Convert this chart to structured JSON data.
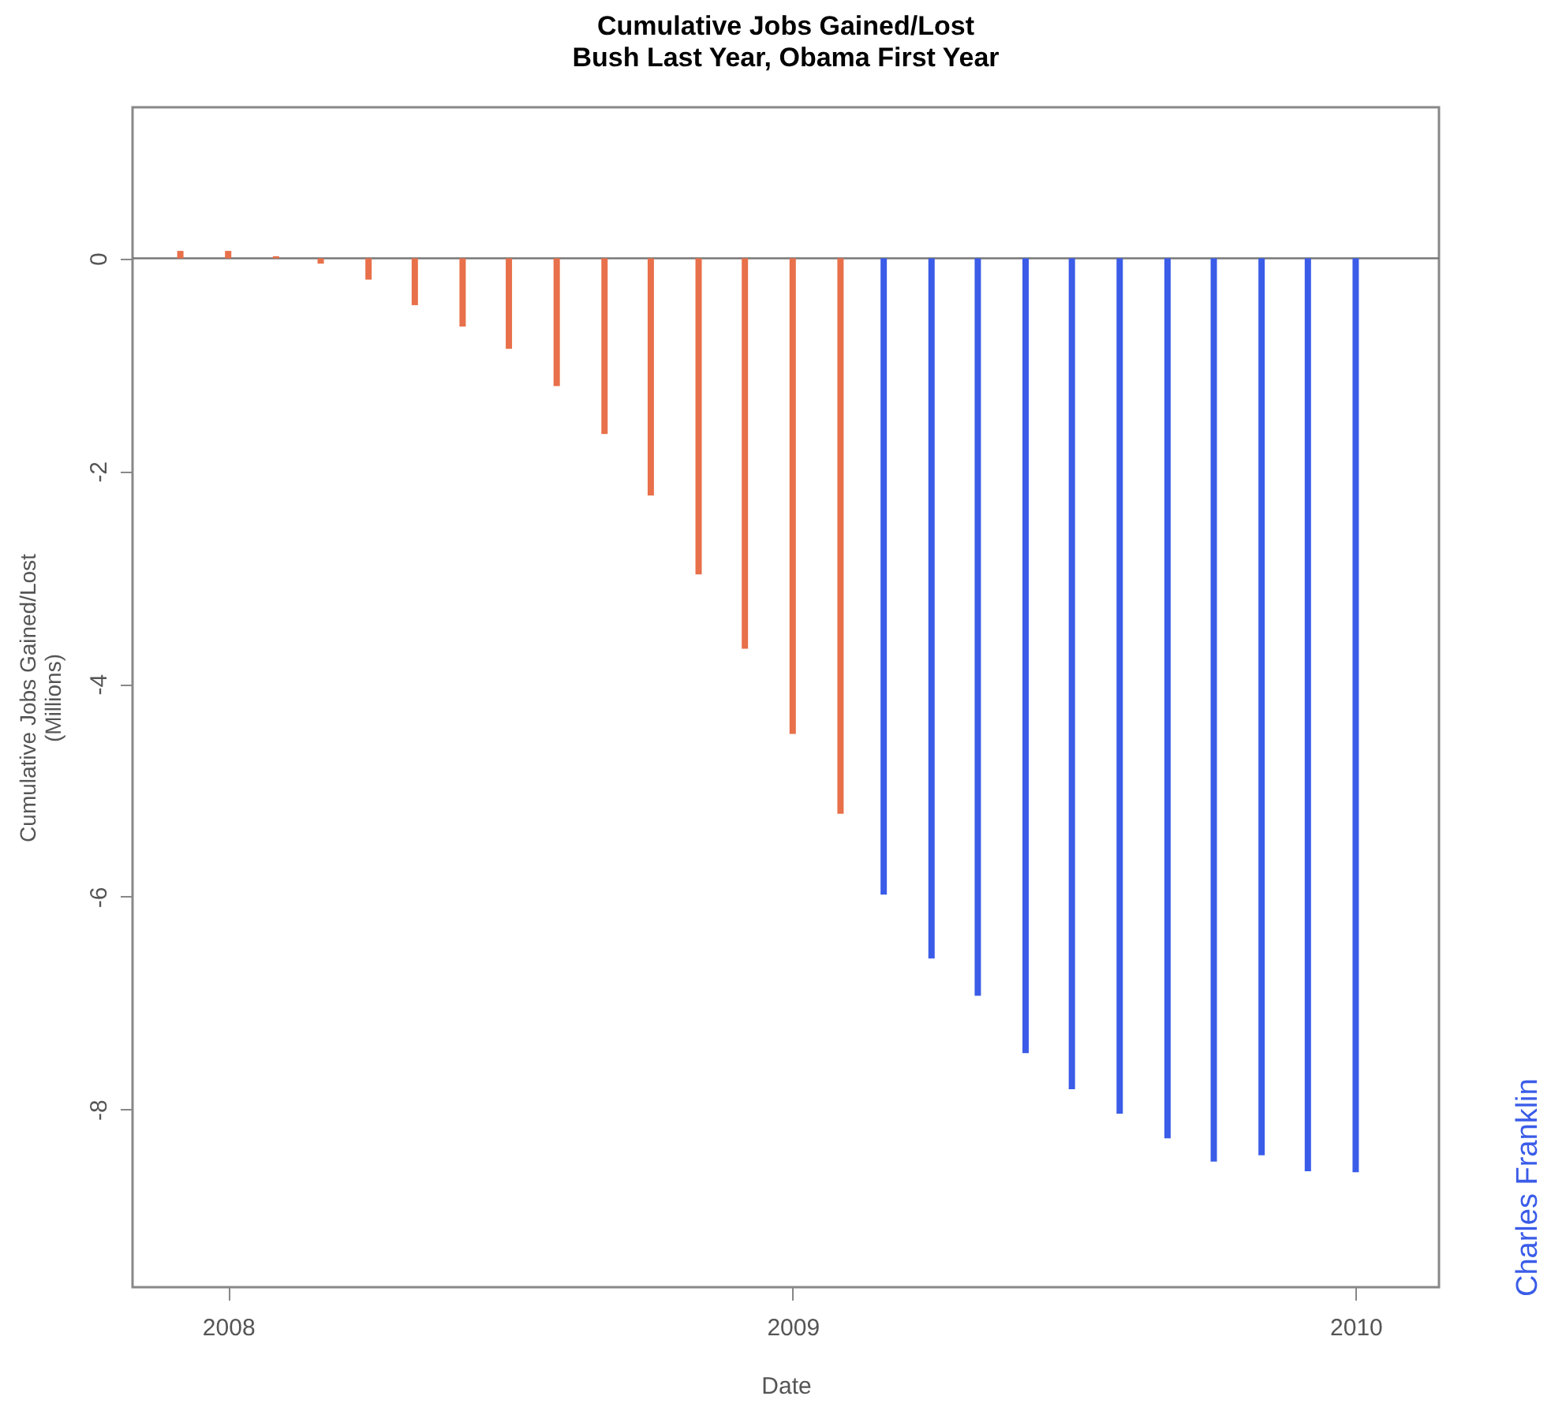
{
  "chart_data": {
    "type": "bar",
    "title": "Cumulative Jobs Gained/Lost",
    "subtitle": "Bush Last Year, Obama First Year",
    "xlabel": "Date",
    "ylabel": "Cumulative Jobs Gained/Lost\n(Millions)",
    "annotations": [
      "Charles Franklin"
    ],
    "series": [
      {
        "color": "#e8704a",
        "x": [
          "2007-12",
          "2008-01",
          "2008-02",
          "2008-03",
          "2008-04",
          "2008-05",
          "2008-06",
          "2008-07",
          "2008-08",
          "2008-09",
          "2008-10",
          "2008-11",
          "2008-12",
          "2009-01",
          "2009-02"
        ],
        "values": [
          0.07,
          0.07,
          0.02,
          -0.05,
          -0.2,
          -0.44,
          -0.64,
          -0.85,
          -1.2,
          -1.65,
          -2.23,
          -2.97,
          -3.67,
          -4.47,
          -5.22
        ]
      },
      {
        "color": "#3a5ce8",
        "x": [
          "2009-03",
          "2009-04",
          "2009-05",
          "2009-06",
          "2009-07",
          "2009-08",
          "2009-09",
          "2009-10",
          "2009-11",
          "2009-12",
          "2010-01"
        ],
        "values": [
          -5.98,
          -6.58,
          -6.93,
          -7.47,
          -7.81,
          -8.04,
          -8.27,
          -8.49,
          -8.43,
          -8.58,
          -8.59
        ]
      }
    ],
    "xlim": [
      "2007-10-31",
      "2010-02-24"
    ],
    "xticks": [
      "2008",
      "2009",
      "2010"
    ],
    "ylim": [
      -9.67,
      1.42
    ],
    "yticks": [
      -8,
      -6,
      -4,
      -2,
      0
    ],
    "ref_lines": [
      {
        "axis": "y",
        "value": 0,
        "color": "#777777"
      }
    ],
    "legend": false
  }
}
